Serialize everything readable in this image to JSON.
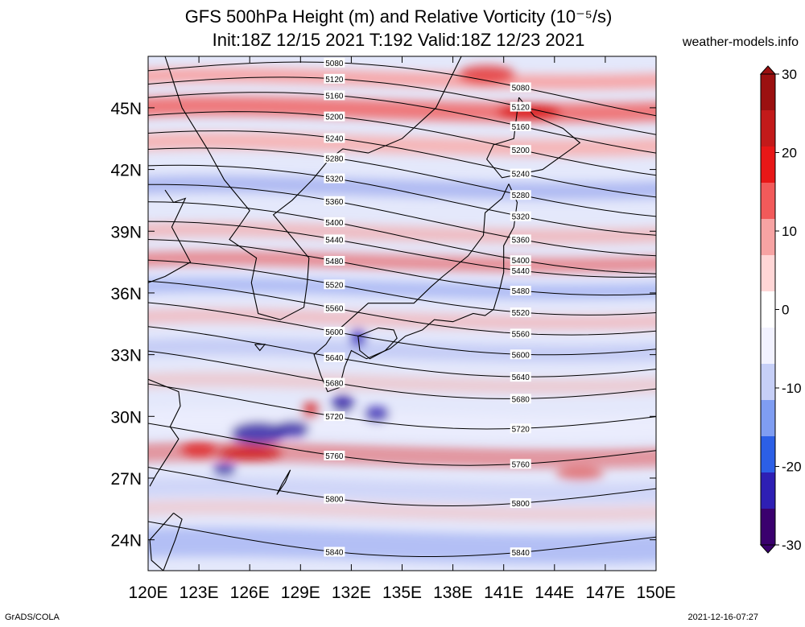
{
  "title": {
    "line1": "GFS 500hPa Height (m) and Relative Vorticity (10⁻⁵/s)",
    "line2": "Init:18Z 12/15 2021 T:192 Valid:18Z 12/23 2021"
  },
  "source": "weather-models.info",
  "footer_left": "GrADS/COLA",
  "footer_right": "2021-12-16-07:27",
  "map": {
    "lon_labels": [
      "120E",
      "123E",
      "126E",
      "129E",
      "132E",
      "135E",
      "138E",
      "141E",
      "144E",
      "147E",
      "150E"
    ],
    "lat_labels": [
      "45N",
      "42N",
      "39N",
      "36N",
      "33N",
      "30N",
      "27N",
      "24N"
    ],
    "lon_range": [
      120,
      150
    ],
    "lat_range": [
      22.5,
      47.5
    ]
  },
  "colorbar": {
    "ticks": [
      "30",
      "20",
      "10",
      "0",
      "-10",
      "-20",
      "-30"
    ],
    "range": [
      -30,
      30
    ],
    "colors": [
      "#3a006e",
      "#2e1fb4",
      "#2c5fe6",
      "#7f9df2",
      "#c6cff7",
      "#f2f2ff",
      "#ffffff",
      "#ffd6d6",
      "#f7a3a3",
      "#f25a5a",
      "#e81717",
      "#c31a1a",
      "#9b1010"
    ]
  },
  "contours": [
    {
      "label": "5080",
      "lat": 46.8,
      "color": "#000000"
    },
    {
      "label": "5120",
      "lat": 46.0,
      "color": "#000000"
    },
    {
      "label": "5160",
      "lat": 45.2,
      "color": "#000000"
    },
    {
      "label": "5200",
      "lat": 44.2,
      "color": "#000000"
    },
    {
      "label": "5240",
      "lat": 43.2,
      "color": "#000000"
    },
    {
      "label": "5280",
      "lat": 42.3,
      "color": "#000000"
    },
    {
      "label": "5320",
      "lat": 41.4,
      "color": "#000000"
    },
    {
      "label": "5360",
      "lat": 40.4,
      "color": "#000000"
    },
    {
      "label": "5400",
      "lat": 39.5,
      "color": "#000000"
    },
    {
      "label": "5440",
      "lat": 38.5,
      "color": "#000000"
    },
    {
      "label": "5480",
      "lat": 37.6,
      "color": "#000000"
    },
    {
      "label": "5520",
      "lat": 36.6,
      "color": "#000000"
    },
    {
      "label": "5560",
      "lat": 35.6,
      "color": "#000000"
    },
    {
      "label": "5600",
      "lat": 34.6,
      "color": "#000000"
    },
    {
      "label": "5640",
      "lat": 33.5,
      "color": "#000000"
    },
    {
      "label": "5680",
      "lat": 32.4,
      "color": "#000000"
    },
    {
      "label": "5720",
      "lat": 30.9,
      "color": "#000000"
    },
    {
      "label": "5760",
      "lat": 29.1,
      "color": "#000000"
    },
    {
      "label": "5800",
      "lat": 27.1,
      "color": "#000000"
    },
    {
      "label": "5840",
      "lat": 24.6,
      "color": "#000000"
    }
  ]
}
